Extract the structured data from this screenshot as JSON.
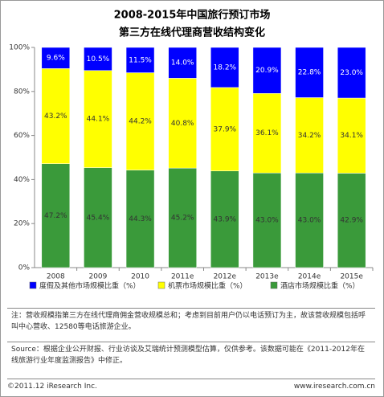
{
  "chart_data": {
    "type": "stacked-bar",
    "title": "2008-2015年中国旅行预订市场",
    "subtitle": "第三方在线代理商营收结构变化",
    "categories": [
      "2008",
      "2009",
      "2010",
      "2011e",
      "2012e",
      "2013e",
      "2014e",
      "2015e"
    ],
    "series": [
      {
        "name": "酒店市场规模比重（%）",
        "color": "#3a9a3a",
        "values": [
          47.2,
          45.4,
          44.3,
          45.2,
          43.9,
          43.0,
          43.0,
          42.9
        ],
        "value_labels": [
          "47.2%",
          "45.4%",
          "44.3%",
          "45.2%",
          "43.9%",
          "43.0%",
          "43.0%",
          "42.9%"
        ]
      },
      {
        "name": "机票市场规模比重（%）",
        "color": "#ffff00",
        "values": [
          43.2,
          44.1,
          44.2,
          40.8,
          37.9,
          36.1,
          34.2,
          34.1
        ],
        "value_labels": [
          "43.2%",
          "44.1%",
          "44.2%",
          "40.8%",
          "37.9%",
          "36.1%",
          "34.2%",
          "34.1%"
        ]
      },
      {
        "name": "度假及其他市场规模比重（%）",
        "color": "#0000ff",
        "values": [
          9.6,
          10.5,
          11.5,
          14.0,
          18.2,
          20.9,
          22.8,
          23.0
        ],
        "value_labels": [
          "9.6%",
          "10.5%",
          "11.5%",
          "14.0%",
          "18.2%",
          "20.9%",
          "22.8%",
          "23.0%"
        ]
      }
    ],
    "legend_order": [
      2,
      1,
      0
    ],
    "ylim": [
      0,
      100
    ],
    "yticks": [
      {
        "value": 0,
        "label": "0%"
      },
      {
        "value": 20,
        "label": "20%"
      },
      {
        "value": 40,
        "label": "40%"
      },
      {
        "value": 60,
        "label": "60%"
      },
      {
        "value": 80,
        "label": "80%"
      },
      {
        "value": 100,
        "label": "100%"
      }
    ],
    "grid": false
  },
  "note": "注：营收规模指第三方在线代理商佣金营收规模总和；考虑到目前用户仍以电话预订为主，故该营收规模包括呼叫中心营收、12580等电话旅游企业。",
  "source": "Source：根据企业公开财报、行业访谈及艾瑞统计预测模型估算，仅供参考。该数据可能在《2011-2012年在线旅游行业年度监测报告》中修正。",
  "footer": {
    "copyright": "©2011.12 iResearch Inc.",
    "website": "www.iresearch.com.cn"
  }
}
